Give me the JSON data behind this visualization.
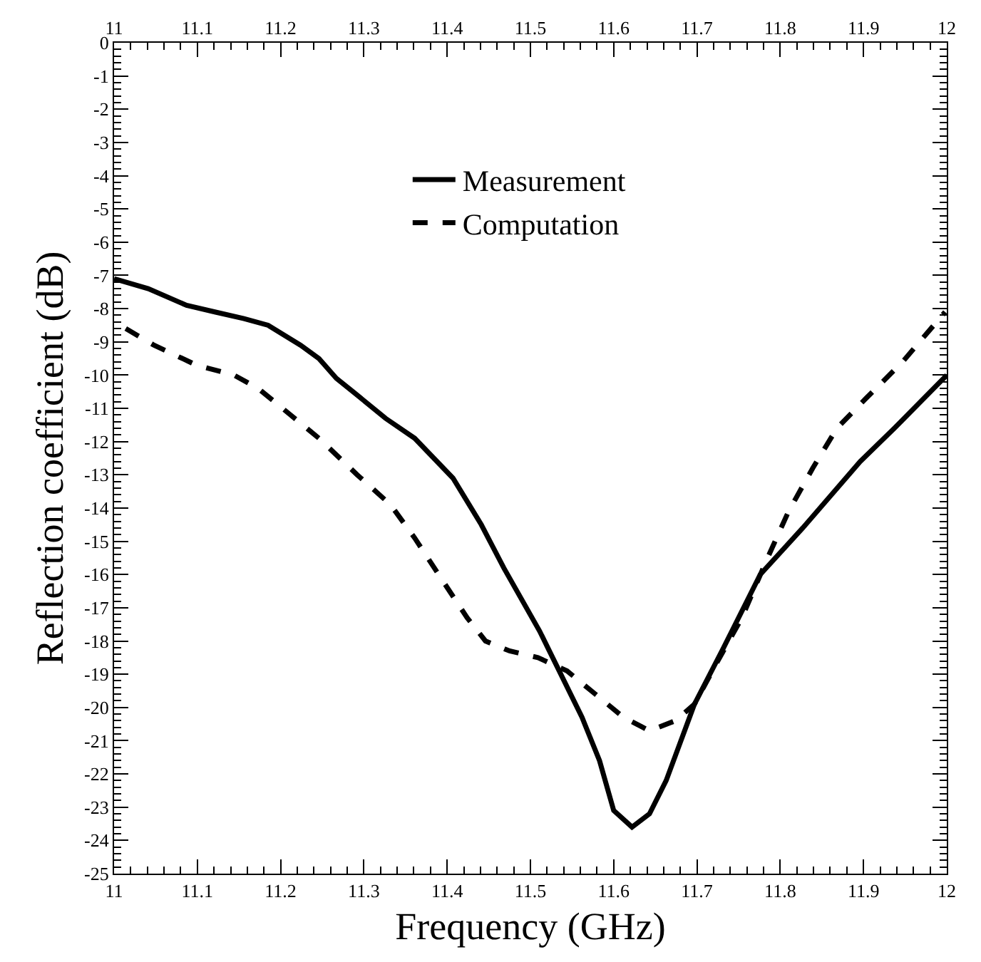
{
  "chart_data": {
    "type": "line",
    "xlabel": "Frequency (GHz)",
    "ylabel": "Reflection coefficient (dB)",
    "xlim": [
      11,
      12
    ],
    "xticks": [
      11,
      11.1,
      11.2,
      11.3,
      11.4,
      11.5,
      11.6,
      11.7,
      11.8,
      11.9,
      12
    ],
    "x2lim": [
      11,
      12
    ],
    "x2ticks": [
      11,
      11.1,
      11.2,
      11.3,
      11.4,
      11.5,
      11.6,
      11.7,
      11.8,
      11.9,
      12
    ],
    "ylim": [
      -25,
      0
    ],
    "yticks": [
      0,
      -1,
      -2,
      -3,
      -4,
      -5,
      -6,
      -7,
      -8,
      -9,
      -10,
      -11,
      -12,
      -13,
      -14,
      -15,
      -16,
      -17,
      -18,
      -19,
      -20,
      -21,
      -22,
      -23,
      -24,
      -25
    ],
    "grid": false,
    "legend": "top",
    "marker": "none",
    "series": [
      {
        "name": "Measurement",
        "color": "#000000",
        "line_style": "solid",
        "x": [
          11.0,
          11.041,
          11.087,
          11.121,
          11.156,
          11.185,
          11.224,
          11.246,
          11.267,
          11.287,
          11.326,
          11.361,
          11.407,
          11.441,
          11.468,
          11.511,
          11.562,
          11.583,
          11.6,
          11.622,
          11.643,
          11.663,
          11.697,
          11.732,
          11.776,
          11.827,
          11.896,
          11.937,
          12.0
        ],
        "values": [
          -7.1,
          -7.4,
          -7.9,
          -8.1,
          -8.3,
          -8.5,
          -9.1,
          -9.5,
          -10.1,
          -10.5,
          -11.3,
          -11.9,
          -13.1,
          -14.5,
          -15.8,
          -17.7,
          -20.3,
          -21.6,
          -23.1,
          -23.6,
          -23.2,
          -22.2,
          -19.9,
          -18.2,
          -16.0,
          -14.6,
          -12.6,
          -11.6,
          -10.0
        ]
      },
      {
        "name": "Computation",
        "color": "#000000",
        "line_style": "dashed",
        "x": [
          11.014,
          11.048,
          11.099,
          11.144,
          11.173,
          11.212,
          11.246,
          11.292,
          11.332,
          11.361,
          11.395,
          11.424,
          11.446,
          11.475,
          11.509,
          11.544,
          11.578,
          11.612,
          11.643,
          11.674,
          11.697,
          11.725,
          11.754,
          11.783,
          11.81,
          11.839,
          11.868,
          11.903,
          11.947,
          11.998
        ],
        "values": [
          -8.6,
          -9.1,
          -9.7,
          -10.0,
          -10.4,
          -11.2,
          -11.9,
          -13.0,
          -13.9,
          -14.9,
          -16.2,
          -17.3,
          -18.0,
          -18.3,
          -18.5,
          -18.9,
          -19.6,
          -20.3,
          -20.7,
          -20.4,
          -19.9,
          -18.6,
          -17.3,
          -15.6,
          -14.1,
          -12.8,
          -11.6,
          -10.7,
          -9.6,
          -8.1
        ]
      }
    ]
  }
}
